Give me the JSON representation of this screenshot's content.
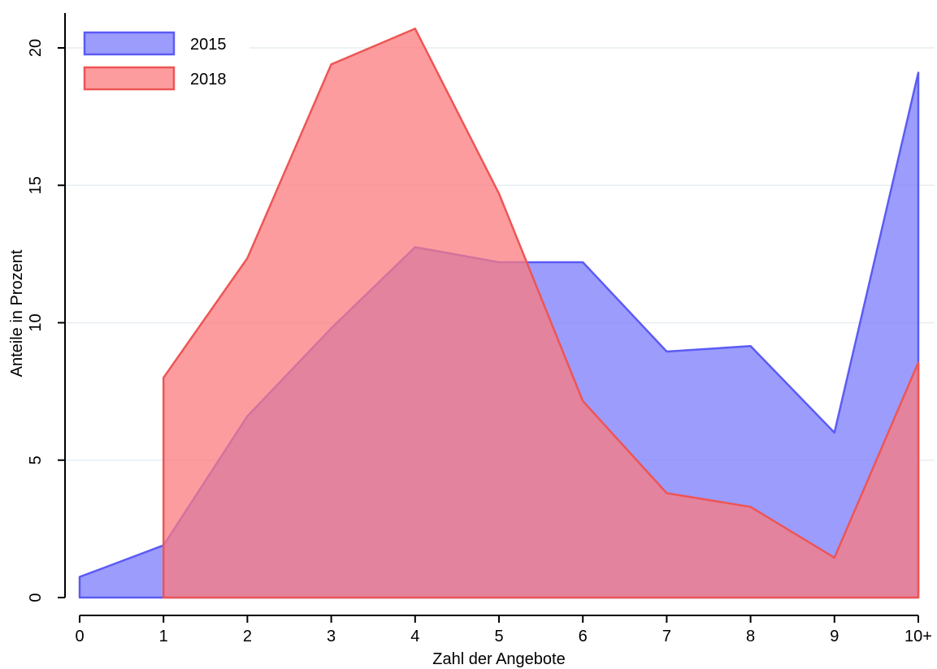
{
  "chart_data": {
    "type": "area",
    "xlabel": "Zahl der Angebote",
    "ylabel": "Anteile in Prozent",
    "categories": [
      "0",
      "1",
      "2",
      "3",
      "4",
      "5",
      "6",
      "7",
      "8",
      "9",
      "10+"
    ],
    "x": [
      0,
      1,
      2,
      3,
      4,
      5,
      6,
      7,
      8,
      9,
      10
    ],
    "ylim": [
      0,
      21
    ],
    "yticks": [
      0,
      5,
      10,
      15,
      20
    ],
    "grid": true,
    "legend_position": "top-left",
    "series": [
      {
        "name": "2015",
        "color": "#5b5bf5",
        "fill": "#7b7bfb",
        "x": [
          0,
          1,
          2,
          3,
          4,
          5,
          6,
          7,
          8,
          9,
          10
        ],
        "values": [
          0.75,
          1.9,
          6.6,
          9.8,
          12.75,
          12.2,
          12.2,
          8.95,
          9.15,
          6.0,
          19.1
        ]
      },
      {
        "name": "2018",
        "color": "#ee5555",
        "fill": "#fb7b7f",
        "x": [
          1,
          2,
          3,
          4,
          5,
          6,
          7,
          8,
          9,
          10
        ],
        "values": [
          8.0,
          12.35,
          19.4,
          20.7,
          14.7,
          7.15,
          3.8,
          3.3,
          1.45,
          8.55
        ]
      }
    ]
  }
}
